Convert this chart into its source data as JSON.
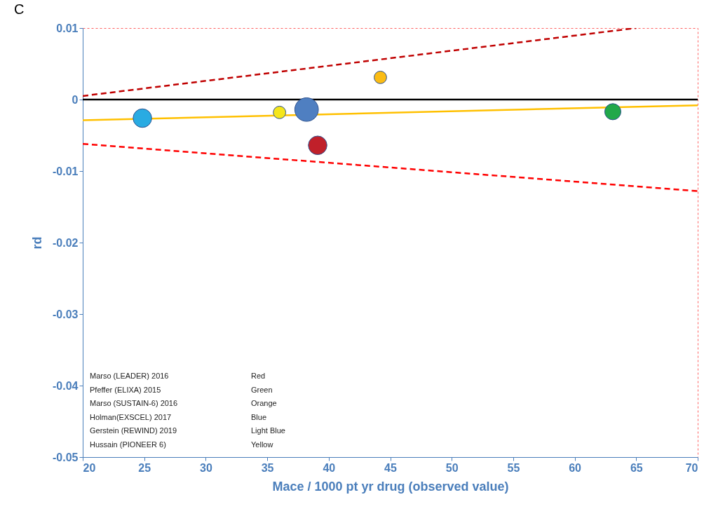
{
  "chart_data": {
    "type": "bubble",
    "title": "C",
    "xlabel": "Mace / 1000 pt yr drug (observed value)",
    "ylabel": "rd",
    "xlim": [
      20,
      70
    ],
    "xticks": [
      20,
      25,
      30,
      35,
      40,
      45,
      50,
      55,
      60,
      65,
      70
    ],
    "ylim": [
      -0.05,
      0.01
    ],
    "yticks": [
      -0.05,
      -0.04,
      -0.03,
      -0.02,
      -0.01,
      0,
      0.01
    ],
    "grid": false,
    "series": [
      {
        "x": [
          24.85,
          36.0,
          38.2,
          39.1,
          44.2,
          63.1
        ],
        "values": [
          -0.0026,
          -0.0018,
          -0.0014,
          -0.0064,
          0.0031,
          -0.0017
        ],
        "sizes": [
          0.62,
          0.28,
          1,
          0.62,
          0.28,
          0.47
        ],
        "colors": [
          "#29abe2",
          "#f5e61a",
          "#4f7fc1",
          "#c0202a",
          "#fbbc14",
          "#21a84a"
        ]
      },
      {
        "type": "line",
        "x": [
          20,
          70
        ],
        "values": [
          -0.0029,
          -0.0008
        ],
        "color": "#ffc000",
        "line_style": "solid"
      },
      {
        "type": "line",
        "x": [
          20,
          65
        ],
        "values": [
          0.0005,
          0.01
        ],
        "color": "#c00000",
        "line_style": "dashed"
      },
      {
        "type": "line",
        "x": [
          20,
          70
        ],
        "values": [
          -0.0062,
          -0.0128
        ],
        "color": "#ff0000",
        "line_style": "dashed"
      }
    ],
    "ref_lines": [
      {
        "axis": "y",
        "value": 0,
        "color": "#000000"
      }
    ],
    "annotations": [
      "Marso (LEADER) 2016",
      "Red",
      "Pfeffer (ELIXA) 2015",
      "Green",
      "Marso (SUSTAIN-6) 2016",
      "Orange",
      "Holman(EXSCEL) 2017",
      "Blue",
      "Gerstein (REWIND) 2019",
      "Light Blue",
      "Hussain (PIONEER 6)",
      "Yellow"
    ]
  }
}
